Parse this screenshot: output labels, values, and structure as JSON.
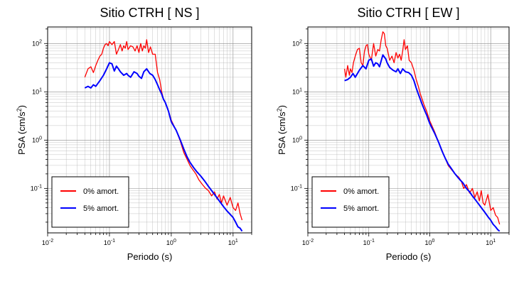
{
  "chart_data": [
    {
      "type": "line",
      "title": "Sitio CTRH [ NS ]",
      "xlabel": "Periodo (s)",
      "ylabel": "PSA (cm/s2)",
      "ylabel_base": "PSA (cm/s",
      "ylabel_sup": "2",
      "ylabel_close": ")",
      "x_scale": "log",
      "y_scale": "log",
      "xlim": [
        0.01,
        20
      ],
      "ylim": [
        0.012,
        220
      ],
      "grid": true,
      "legend_position": "bottom-left",
      "x_ticks": [
        {
          "base": "10",
          "exp": "-2"
        },
        {
          "base": "10",
          "exp": "-1"
        },
        {
          "base": "10",
          "exp": "0"
        },
        {
          "base": "10",
          "exp": "1"
        }
      ],
      "y_ticks": [
        {
          "base": "10",
          "exp": "-1"
        },
        {
          "base": "10",
          "exp": "0"
        },
        {
          "base": "10",
          "exp": "1"
        },
        {
          "base": "10",
          "exp": "2"
        }
      ],
      "series": [
        {
          "name": "0% amort.",
          "color": "#ff0000",
          "x": [
            0.04,
            0.045,
            0.05,
            0.055,
            0.06,
            0.065,
            0.07,
            0.075,
            0.08,
            0.085,
            0.09,
            0.095,
            0.1,
            0.11,
            0.12,
            0.13,
            0.14,
            0.15,
            0.16,
            0.17,
            0.18,
            0.19,
            0.2,
            0.22,
            0.24,
            0.26,
            0.28,
            0.3,
            0.32,
            0.34,
            0.36,
            0.38,
            0.4,
            0.43,
            0.46,
            0.5,
            0.55,
            0.6,
            0.65,
            0.7,
            0.75,
            0.8,
            0.9,
            1.0,
            1.1,
            1.2,
            1.4,
            1.6,
            1.8,
            2.0,
            2.2,
            2.5,
            2.8,
            3.2,
            3.6,
            4.0,
            4.5,
            5.0,
            5.5,
            6.0,
            6.5,
            7.0,
            8.0,
            9.0,
            10.0,
            11.0,
            12.0,
            13.0,
            14.0
          ],
          "y": [
            20,
            30,
            33,
            25,
            35,
            45,
            55,
            60,
            80,
            95,
            100,
            90,
            110,
            95,
            110,
            60,
            75,
            95,
            70,
            90,
            80,
            110,
            75,
            90,
            85,
            70,
            90,
            65,
            100,
            70,
            90,
            80,
            120,
            65,
            85,
            60,
            60,
            25,
            18,
            10,
            7,
            6,
            4,
            2.6,
            2.0,
            1.6,
            0.95,
            0.55,
            0.4,
            0.3,
            0.25,
            0.2,
            0.15,
            0.12,
            0.1,
            0.09,
            0.07,
            0.085,
            0.06,
            0.075,
            0.05,
            0.07,
            0.045,
            0.065,
            0.04,
            0.035,
            0.05,
            0.03,
            0.022
          ]
        },
        {
          "name": "5% amort.",
          "color": "#0000ff",
          "x": [
            0.04,
            0.045,
            0.05,
            0.055,
            0.06,
            0.07,
            0.08,
            0.09,
            0.1,
            0.11,
            0.12,
            0.13,
            0.14,
            0.15,
            0.17,
            0.19,
            0.2,
            0.22,
            0.25,
            0.28,
            0.3,
            0.33,
            0.36,
            0.4,
            0.45,
            0.5,
            0.55,
            0.6,
            0.65,
            0.7,
            0.75,
            0.8,
            0.9,
            1.0,
            1.2,
            1.4,
            1.6,
            1.8,
            2.0,
            2.3,
            2.6,
            3.0,
            3.5,
            4.0,
            4.5,
            5.0,
            6.0,
            7.0,
            8.0,
            9.0,
            10.0,
            11.0,
            12.0,
            13.0,
            14.0
          ],
          "y": [
            12,
            13,
            12,
            14,
            13,
            17,
            22,
            30,
            40,
            38,
            27,
            34,
            30,
            26,
            22,
            24,
            22,
            20,
            26,
            24,
            21,
            19,
            26,
            30,
            24,
            22,
            18,
            14,
            11,
            9,
            7,
            6,
            4,
            2.4,
            1.6,
            1.0,
            0.65,
            0.45,
            0.35,
            0.27,
            0.22,
            0.18,
            0.14,
            0.11,
            0.09,
            0.075,
            0.055,
            0.042,
            0.034,
            0.029,
            0.025,
            0.02,
            0.016,
            0.015,
            0.013
          ]
        }
      ]
    },
    {
      "type": "line",
      "title": "Sitio CTRH [ EW ]",
      "xlabel": "Periodo (s)",
      "ylabel": "PSA (cm/s2)",
      "ylabel_base": "PSA (cm/s",
      "ylabel_sup": "2",
      "ylabel_close": ")",
      "x_scale": "log",
      "y_scale": "log",
      "xlim": [
        0.01,
        20
      ],
      "ylim": [
        0.012,
        220
      ],
      "grid": true,
      "legend_position": "bottom-left",
      "x_ticks": [
        {
          "base": "10",
          "exp": "-2"
        },
        {
          "base": "10",
          "exp": "-1"
        },
        {
          "base": "10",
          "exp": "0"
        },
        {
          "base": "10",
          "exp": "1"
        }
      ],
      "y_ticks": [
        {
          "base": "10",
          "exp": "-1"
        },
        {
          "base": "10",
          "exp": "0"
        },
        {
          "base": "10",
          "exp": "1"
        },
        {
          "base": "10",
          "exp": "2"
        }
      ],
      "series": [
        {
          "name": "0% amort.",
          "color": "#ff0000",
          "x": [
            0.04,
            0.042,
            0.045,
            0.048,
            0.05,
            0.053,
            0.056,
            0.06,
            0.065,
            0.07,
            0.075,
            0.08,
            0.085,
            0.09,
            0.095,
            0.1,
            0.11,
            0.12,
            0.13,
            0.14,
            0.15,
            0.16,
            0.17,
            0.18,
            0.19,
            0.2,
            0.22,
            0.24,
            0.26,
            0.28,
            0.3,
            0.32,
            0.34,
            0.36,
            0.38,
            0.4,
            0.43,
            0.46,
            0.5,
            0.55,
            0.6,
            0.65,
            0.7,
            0.75,
            0.8,
            0.9,
            1.0,
            1.2,
            1.4,
            1.6,
            1.8,
            2.0,
            2.3,
            2.6,
            3.0,
            3.3,
            3.6,
            4.0,
            4.5,
            5.0,
            5.5,
            6.0,
            6.5,
            7.0,
            7.5,
            8.0,
            9.0,
            10.0,
            11.0,
            12.0,
            13.0,
            14.0
          ],
          "y": [
            30,
            20,
            35,
            22,
            30,
            25,
            40,
            55,
            75,
            80,
            40,
            35,
            70,
            90,
            95,
            60,
            45,
            100,
            55,
            75,
            70,
            120,
            175,
            160,
            90,
            80,
            45,
            55,
            40,
            65,
            50,
            60,
            45,
            70,
            120,
            75,
            90,
            45,
            40,
            28,
            18,
            13,
            9,
            7,
            5.5,
            3.8,
            2.5,
            1.5,
            0.9,
            0.6,
            0.42,
            0.3,
            0.24,
            0.2,
            0.17,
            0.14,
            0.1,
            0.12,
            0.08,
            0.1,
            0.065,
            0.085,
            0.055,
            0.09,
            0.05,
            0.045,
            0.075,
            0.035,
            0.04,
            0.028,
            0.025,
            0.018
          ]
        },
        {
          "name": "5% amort.",
          "color": "#0000ff",
          "x": [
            0.04,
            0.045,
            0.05,
            0.055,
            0.06,
            0.07,
            0.08,
            0.09,
            0.1,
            0.11,
            0.12,
            0.13,
            0.14,
            0.15,
            0.17,
            0.19,
            0.2,
            0.22,
            0.25,
            0.28,
            0.3,
            0.33,
            0.36,
            0.4,
            0.45,
            0.5,
            0.55,
            0.6,
            0.65,
            0.7,
            0.75,
            0.8,
            0.9,
            1.0,
            1.2,
            1.4,
            1.6,
            1.8,
            2.0,
            2.3,
            2.6,
            3.0,
            3.5,
            4.0,
            4.5,
            5.0,
            6.0,
            7.0,
            8.0,
            9.0,
            10.0,
            11.0,
            12.0,
            13.0,
            14.0
          ],
          "y": [
            17,
            18,
            20,
            24,
            20,
            28,
            35,
            30,
            45,
            48,
            34,
            40,
            38,
            33,
            58,
            48,
            40,
            32,
            28,
            26,
            30,
            24,
            30,
            26,
            25,
            22,
            17,
            12,
            9,
            7,
            5.5,
            4.5,
            3.2,
            2.2,
            1.4,
            0.9,
            0.58,
            0.42,
            0.32,
            0.25,
            0.2,
            0.16,
            0.13,
            0.1,
            0.085,
            0.07,
            0.052,
            0.04,
            0.032,
            0.026,
            0.022,
            0.018,
            0.016,
            0.014,
            0.013
          ]
        }
      ]
    }
  ]
}
